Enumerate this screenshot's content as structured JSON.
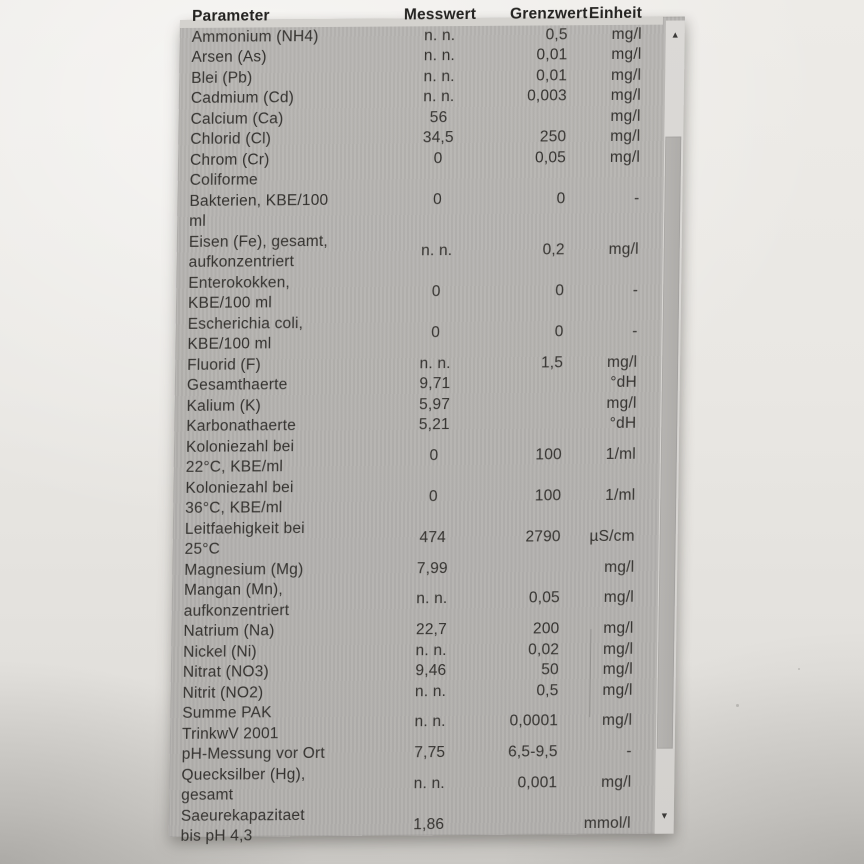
{
  "table": {
    "columns": [
      "Parameter",
      "Messwert",
      "Grenzwert",
      "Einheit"
    ],
    "rows": [
      {
        "parameter": "Ammonium (NH4)",
        "messwert": "n. n.",
        "grenzwert": "0,5",
        "einheit": "mg/l"
      },
      {
        "parameter": "Arsen (As)",
        "messwert": "n. n.",
        "grenzwert": "0,01",
        "einheit": "mg/l"
      },
      {
        "parameter": "Blei (Pb)",
        "messwert": "n. n.",
        "grenzwert": "0,01",
        "einheit": "mg/l"
      },
      {
        "parameter": "Cadmium (Cd)",
        "messwert": "n. n.",
        "grenzwert": "0,003",
        "einheit": "mg/l"
      },
      {
        "parameter": "Calcium (Ca)",
        "messwert": "56",
        "grenzwert": "",
        "einheit": "mg/l"
      },
      {
        "parameter": "Chlorid (Cl)",
        "messwert": "34,5",
        "grenzwert": "250",
        "einheit": "mg/l"
      },
      {
        "parameter": "Chrom (Cr)",
        "messwert": "0",
        "grenzwert": "0,05",
        "einheit": "mg/l"
      },
      {
        "parameter": "Coliforme\nBakterien, KBE/100\nml",
        "messwert": "0",
        "grenzwert": "0",
        "einheit": "-"
      },
      {
        "parameter": "Eisen (Fe), gesamt,\naufkonzentriert",
        "messwert": "n. n.",
        "grenzwert": "0,2",
        "einheit": "mg/l"
      },
      {
        "parameter": "Enterokokken,\nKBE/100 ml",
        "messwert": "0",
        "grenzwert": "0",
        "einheit": "-"
      },
      {
        "parameter": "Escherichia coli,\nKBE/100 ml",
        "messwert": "0",
        "grenzwert": "0",
        "einheit": "-"
      },
      {
        "parameter": "Fluorid (F)",
        "messwert": "n. n.",
        "grenzwert": "1,5",
        "einheit": "mg/l"
      },
      {
        "parameter": "Gesamthaerte",
        "messwert": "9,71",
        "grenzwert": "",
        "einheit": "°dH"
      },
      {
        "parameter": "Kalium (K)",
        "messwert": "5,97",
        "grenzwert": "",
        "einheit": "mg/l"
      },
      {
        "parameter": "Karbonathaerte",
        "messwert": "5,21",
        "grenzwert": "",
        "einheit": "°dH"
      },
      {
        "parameter": "Koloniezahl bei\n22°C, KBE/ml",
        "messwert": "0",
        "grenzwert": "100",
        "einheit": "1/ml"
      },
      {
        "parameter": "Koloniezahl bei\n36°C, KBE/ml",
        "messwert": "0",
        "grenzwert": "100",
        "einheit": "1/ml"
      },
      {
        "parameter": "Leitfaehigkeit bei\n25°C",
        "messwert": "474",
        "grenzwert": "2790",
        "einheit": "µS/cm"
      },
      {
        "parameter": "Magnesium (Mg)",
        "messwert": "7,99",
        "grenzwert": "",
        "einheit": "mg/l"
      },
      {
        "parameter": "Mangan (Mn),\naufkonzentriert",
        "messwert": "n. n.",
        "grenzwert": "0,05",
        "einheit": "mg/l"
      },
      {
        "parameter": "Natrium (Na)",
        "messwert": "22,7",
        "grenzwert": "200",
        "einheit": "mg/l"
      },
      {
        "parameter": "Nickel (Ni)",
        "messwert": "n. n.",
        "grenzwert": "0,02",
        "einheit": "mg/l"
      },
      {
        "parameter": "Nitrat (NO3)",
        "messwert": "9,46",
        "grenzwert": "50",
        "einheit": "mg/l"
      },
      {
        "parameter": "Nitrit (NO2)",
        "messwert": "n. n.",
        "grenzwert": "0,5",
        "einheit": "mg/l"
      },
      {
        "parameter": "Summe PAK\nTrinkwV 2001",
        "messwert": "n. n.",
        "grenzwert": "0,0001",
        "einheit": "mg/l"
      },
      {
        "parameter": "pH-Messung vor Ort",
        "messwert": "7,75",
        "grenzwert": "6,5-9,5",
        "einheit": "-"
      },
      {
        "parameter": "Quecksilber (Hg),\ngesamt",
        "messwert": "n. n.",
        "grenzwert": "0,001",
        "einheit": "mg/l"
      },
      {
        "parameter": "Saeurekapazitaet\nbis pH 4,3",
        "messwert": "1,86",
        "grenzwert": "",
        "einheit": "mmol/l"
      }
    ]
  },
  "scrollbar": {
    "up_icon": "▲",
    "down_icon": "▼"
  },
  "colors": {
    "wall": "#e9e7e3",
    "panel": "#b5b3b0",
    "header_strip": "#d4d2ce",
    "text": "#34322f",
    "scroll_track": "#d7d5d2",
    "scroll_thumb": "#b2b0ad",
    "scroll_arrow": "#3c3b39"
  }
}
